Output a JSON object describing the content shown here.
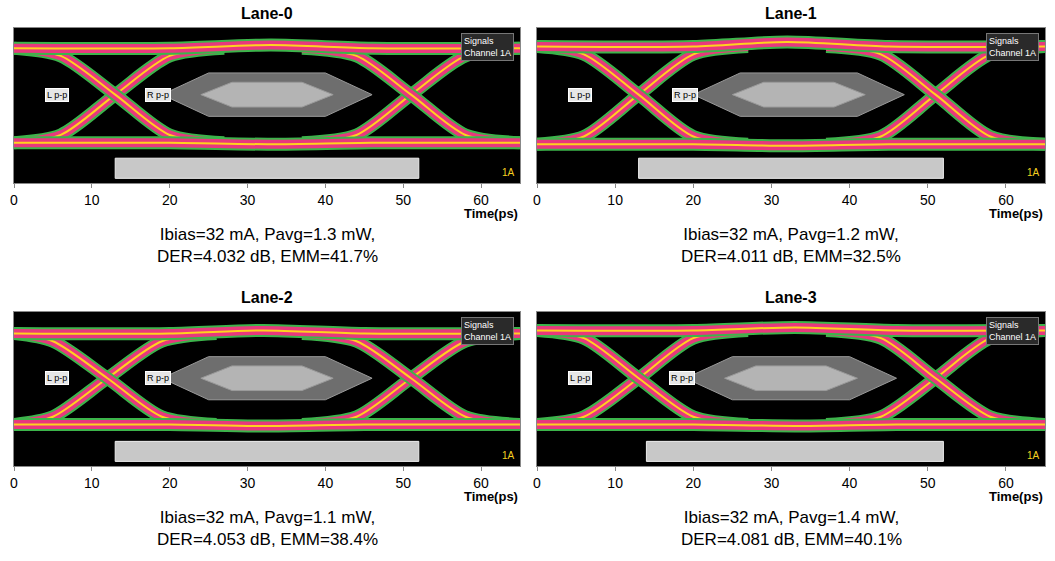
{
  "chart_data": [
    {
      "type": "line",
      "title": "Lane-0",
      "caption": [
        "Ibias=32 mA, Pavg=1.3 mW,",
        "DER=4.032 dB, EMM=41.7%"
      ],
      "x_label": "Time(ps)",
      "xlim": [
        0,
        65
      ],
      "xticks": [
        0,
        10,
        20,
        30,
        40,
        50,
        60
      ],
      "ylim": [
        0,
        1
      ],
      "yticks": [],
      "tick_labels": "x",
      "grid": false,
      "series": [
        {
          "color": "#e8387d",
          "x": [
            0,
            6,
            13,
            20,
            27
          ],
          "values": [
            0.26,
            0.31,
            0.57,
            0.82,
            0.87
          ]
        },
        {
          "color": "#e8387d",
          "x": [
            0,
            6,
            13,
            20,
            27
          ],
          "values": [
            0.87,
            0.82,
            0.57,
            0.31,
            0.26
          ]
        },
        {
          "color": "#e8387d",
          "x": [
            37,
            44,
            51,
            58,
            65
          ],
          "values": [
            0.26,
            0.31,
            0.57,
            0.82,
            0.87
          ]
        },
        {
          "color": "#e8387d",
          "x": [
            37,
            44,
            51,
            58,
            65
          ],
          "values": [
            0.87,
            0.82,
            0.57,
            0.31,
            0.26
          ]
        },
        {
          "color": "#e8387d",
          "x": [
            0,
            20,
            33,
            46,
            65
          ],
          "values": [
            0.87,
            0.87,
            0.89,
            0.87,
            0.87
          ]
        },
        {
          "color": "#e8387d",
          "x": [
            0,
            20,
            33,
            46,
            65
          ],
          "values": [
            0.26,
            0.26,
            0.25,
            0.26,
            0.26
          ]
        }
      ],
      "masks": [
        {
          "color": "#6e6e6e",
          "x": [
            19,
            25,
            40,
            46,
            40,
            25,
            19
          ],
          "y": [
            0.57,
            0.71,
            0.71,
            0.57,
            0.43,
            0.43,
            0.57
          ]
        },
        {
          "color": "#b4b4b4",
          "x": [
            24,
            28,
            37,
            41,
            37,
            28,
            24
          ],
          "y": [
            0.57,
            0.65,
            0.65,
            0.57,
            0.49,
            0.49,
            0.57
          ]
        }
      ],
      "window": {
        "x": [
          13,
          52
        ],
        "y": [
          0.03,
          0.16
        ]
      },
      "annotations": [
        {
          "text": "L p-p",
          "x": 5.5,
          "y": 0.57
        },
        {
          "text": "R p-p",
          "x": 18.5,
          "y": 0.57
        }
      ],
      "signals_box": {
        "title": "Signals",
        "entry": "Channel 1A"
      },
      "marker_label": "1A"
    },
    {
      "type": "line",
      "title": "Lane-1",
      "caption": [
        "Ibias=32 mA, Pavg=1.2 mW,",
        "DER=4.011 dB, EMM=32.5%"
      ],
      "x_label": "Time(ps)",
      "xlim": [
        0,
        65
      ],
      "xticks": [
        0,
        10,
        20,
        30,
        40,
        50,
        60
      ],
      "ylim": [
        0,
        1
      ],
      "yticks": [],
      "tick_labels": "x",
      "grid": false,
      "series": [
        {
          "color": "#e8387d",
          "x": [
            0,
            6,
            13,
            20,
            27
          ],
          "values": [
            0.25,
            0.3,
            0.57,
            0.83,
            0.88
          ]
        },
        {
          "color": "#e8387d",
          "x": [
            0,
            6,
            13,
            20,
            27
          ],
          "values": [
            0.88,
            0.83,
            0.57,
            0.3,
            0.25
          ]
        },
        {
          "color": "#e8387d",
          "x": [
            37,
            44,
            51,
            58,
            65
          ],
          "values": [
            0.25,
            0.3,
            0.57,
            0.83,
            0.88
          ]
        },
        {
          "color": "#e8387d",
          "x": [
            37,
            44,
            51,
            58,
            65
          ],
          "values": [
            0.88,
            0.83,
            0.57,
            0.3,
            0.25
          ]
        },
        {
          "color": "#e8387d",
          "x": [
            0,
            20,
            32,
            45,
            65
          ],
          "values": [
            0.88,
            0.88,
            0.91,
            0.88,
            0.88
          ]
        },
        {
          "color": "#e8387d",
          "x": [
            0,
            20,
            32,
            45,
            65
          ],
          "values": [
            0.25,
            0.25,
            0.24,
            0.25,
            0.25
          ]
        }
      ],
      "masks": [
        {
          "color": "#6e6e6e",
          "x": [
            20,
            26,
            41,
            47,
            41,
            26,
            20
          ],
          "y": [
            0.57,
            0.71,
            0.71,
            0.57,
            0.43,
            0.43,
            0.57
          ]
        },
        {
          "color": "#b4b4b4",
          "x": [
            25,
            29,
            38,
            42,
            38,
            29,
            25
          ],
          "y": [
            0.57,
            0.65,
            0.65,
            0.57,
            0.49,
            0.49,
            0.57
          ]
        }
      ],
      "window": {
        "x": [
          13,
          52
        ],
        "y": [
          0.03,
          0.16
        ]
      },
      "annotations": [
        {
          "text": "L p-p",
          "x": 5.5,
          "y": 0.57
        },
        {
          "text": "R p-p",
          "x": 19,
          "y": 0.57
        }
      ],
      "signals_box": {
        "title": "Signals",
        "entry": "Channel 1A"
      },
      "marker_label": "1A"
    },
    {
      "type": "line",
      "title": "Lane-2",
      "caption": [
        "Ibias=32 mA, Pavg=1.1 mW,",
        "DER=4.053 dB, EMM=38.4%"
      ],
      "x_label": "Time(ps)",
      "xlim": [
        0,
        65
      ],
      "xticks": [
        0,
        10,
        20,
        30,
        40,
        50,
        60
      ],
      "ylim": [
        0,
        1
      ],
      "yticks": [],
      "tick_labels": "x",
      "grid": false,
      "series": [
        {
          "color": "#e8387d",
          "x": [
            0,
            5,
            12,
            19,
            26
          ],
          "values": [
            0.27,
            0.32,
            0.57,
            0.81,
            0.86
          ]
        },
        {
          "color": "#e8387d",
          "x": [
            0,
            5,
            12,
            19,
            26
          ],
          "values": [
            0.86,
            0.81,
            0.57,
            0.32,
            0.27
          ]
        },
        {
          "color": "#e8387d",
          "x": [
            37,
            44,
            51,
            58,
            65
          ],
          "values": [
            0.27,
            0.32,
            0.57,
            0.81,
            0.86
          ]
        },
        {
          "color": "#e8387d",
          "x": [
            37,
            44,
            51,
            58,
            65
          ],
          "values": [
            0.86,
            0.81,
            0.57,
            0.32,
            0.27
          ]
        },
        {
          "color": "#e8387d",
          "x": [
            0,
            20,
            32,
            45,
            65
          ],
          "values": [
            0.86,
            0.86,
            0.88,
            0.86,
            0.86
          ]
        },
        {
          "color": "#e8387d",
          "x": [
            0,
            20,
            32,
            45,
            65
          ],
          "values": [
            0.27,
            0.27,
            0.26,
            0.27,
            0.27
          ]
        }
      ],
      "masks": [
        {
          "color": "#6e6e6e",
          "x": [
            19,
            25,
            40,
            46,
            40,
            25,
            19
          ],
          "y": [
            0.57,
            0.71,
            0.71,
            0.57,
            0.43,
            0.43,
            0.57
          ]
        },
        {
          "color": "#b4b4b4",
          "x": [
            24,
            28,
            37,
            41,
            37,
            28,
            24
          ],
          "y": [
            0.57,
            0.65,
            0.65,
            0.57,
            0.49,
            0.49,
            0.57
          ]
        }
      ],
      "window": {
        "x": [
          13,
          52
        ],
        "y": [
          0.03,
          0.16
        ]
      },
      "annotations": [
        {
          "text": "L p-p",
          "x": 5.5,
          "y": 0.57
        },
        {
          "text": "R p-p",
          "x": 18.5,
          "y": 0.57
        }
      ],
      "signals_box": {
        "title": "Signals",
        "entry": "Channel 1A"
      },
      "marker_label": "1A"
    },
    {
      "type": "line",
      "title": "Lane-3",
      "caption": [
        "Ibias=32 mA, Pavg=1.4 mW,",
        "DER=4.081 dB, EMM=40.1%"
      ],
      "x_label": "Time(ps)",
      "xlim": [
        0,
        65
      ],
      "xticks": [
        0,
        10,
        20,
        30,
        40,
        50,
        60
      ],
      "ylim": [
        0,
        1
      ],
      "yticks": [],
      "tick_labels": "x",
      "grid": false,
      "series": [
        {
          "color": "#e8387d",
          "x": [
            0,
            6,
            13,
            20,
            27
          ],
          "values": [
            0.27,
            0.32,
            0.57,
            0.83,
            0.88
          ]
        },
        {
          "color": "#e8387d",
          "x": [
            0,
            6,
            13,
            20,
            27
          ],
          "values": [
            0.88,
            0.83,
            0.57,
            0.32,
            0.27
          ]
        },
        {
          "color": "#e8387d",
          "x": [
            37,
            44,
            51,
            58,
            65
          ],
          "values": [
            0.27,
            0.32,
            0.57,
            0.83,
            0.88
          ]
        },
        {
          "color": "#e8387d",
          "x": [
            37,
            44,
            51,
            58,
            65
          ],
          "values": [
            0.88,
            0.83,
            0.57,
            0.32,
            0.27
          ]
        },
        {
          "color": "#e8387d",
          "x": [
            0,
            20,
            33,
            46,
            65
          ],
          "values": [
            0.88,
            0.88,
            0.9,
            0.88,
            0.88
          ]
        },
        {
          "color": "#e8387d",
          "x": [
            0,
            20,
            33,
            46,
            65
          ],
          "values": [
            0.27,
            0.27,
            0.26,
            0.27,
            0.27
          ]
        }
      ],
      "masks": [
        {
          "color": "#6e6e6e",
          "x": [
            19,
            25,
            40,
            46,
            40,
            25,
            19
          ],
          "y": [
            0.57,
            0.71,
            0.71,
            0.57,
            0.43,
            0.43,
            0.57
          ]
        },
        {
          "color": "#b4b4b4",
          "x": [
            24,
            28,
            37,
            41,
            37,
            28,
            24
          ],
          "y": [
            0.57,
            0.65,
            0.65,
            0.57,
            0.49,
            0.49,
            0.57
          ]
        }
      ],
      "window": {
        "x": [
          14,
          52
        ],
        "y": [
          0.03,
          0.16
        ]
      },
      "annotations": [
        {
          "text": "L p-p",
          "x": 5.5,
          "y": 0.57
        },
        {
          "text": "R p-p",
          "x": 18.5,
          "y": 0.57
        }
      ],
      "signals_box": {
        "title": "Signals",
        "entry": "Channel 1A"
      },
      "marker_label": "1A"
    }
  ]
}
